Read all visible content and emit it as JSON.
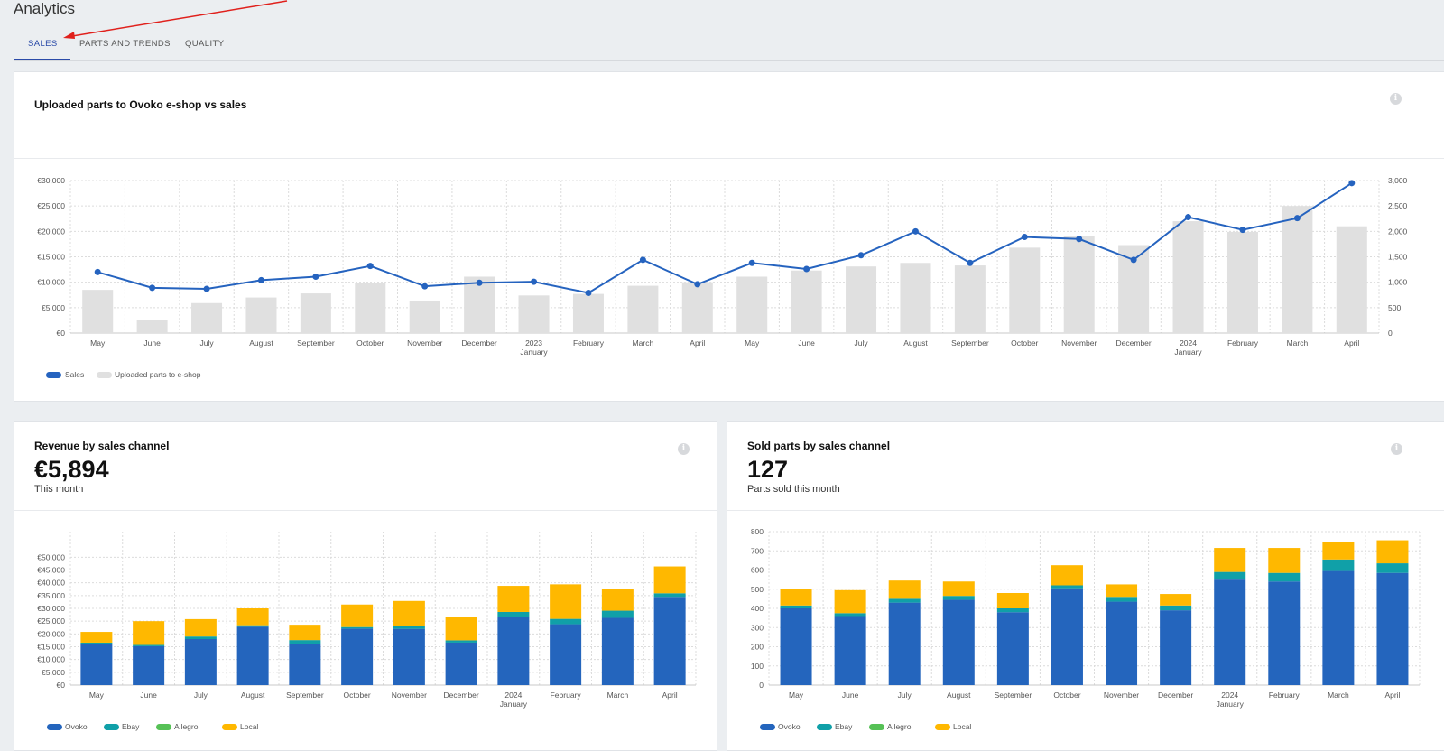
{
  "page": {
    "title": "Analytics"
  },
  "tabs": [
    {
      "label": "SALES",
      "active": true
    },
    {
      "label": "PARTS AND TRENDS",
      "active": false
    },
    {
      "label": "QUALITY",
      "active": false
    }
  ],
  "colors": {
    "sales_line": "#2563bf",
    "uploaded_bar": "#e0e0e0",
    "ovoko": "#2465bd",
    "ebay": "#10a0a8",
    "allegro": "#56c156",
    "local": "#ffb800",
    "accent": "#2a4aa8"
  },
  "cards": {
    "upload": {
      "title": "Uploaded parts to Ovoko e-shop vs sales"
    },
    "revenue": {
      "title": "Revenue by sales channel",
      "value": "€5,894",
      "sublabel": "This month"
    },
    "sold": {
      "title": "Sold parts by sales channel",
      "value": "127",
      "sublabel": "Parts sold this month"
    }
  },
  "chart_data": [
    {
      "type": "bar",
      "name": "uploaded-vs-sales",
      "categories": [
        "May",
        "June",
        "July",
        "August",
        "September",
        "October",
        "November",
        "December",
        "2023\nJanuary",
        "February",
        "March",
        "April",
        "May",
        "June",
        "July",
        "August",
        "September",
        "October",
        "November",
        "December",
        "2024\nJanuary",
        "February",
        "March",
        "April"
      ],
      "series": [
        {
          "name": "Sales",
          "type": "line",
          "axis": "left",
          "values": [
            12000,
            8900,
            8700,
            10400,
            11100,
            13200,
            9200,
            9900,
            10100,
            7900,
            14400,
            9600,
            13800,
            12600,
            15300,
            20000,
            13800,
            18900,
            18500,
            14400,
            22800,
            20300,
            22600,
            29500
          ]
        },
        {
          "name": "Uploaded parts to e-shop",
          "type": "bar",
          "axis": "right",
          "values": [
            850,
            250,
            590,
            700,
            780,
            990,
            640,
            1110,
            740,
            770,
            930,
            1000,
            1110,
            1230,
            1310,
            1380,
            1330,
            1680,
            1910,
            1730,
            2200,
            1990,
            2500,
            2100
          ]
        }
      ],
      "y_left": {
        "min": 0,
        "max": 30000,
        "ticks": [
          "€0",
          "€5,000",
          "€10,000",
          "€15,000",
          "€20,000",
          "€25,000",
          "€30,000"
        ]
      },
      "y_right": {
        "min": 0,
        "max": 3000,
        "ticks": [
          "0",
          "500",
          "1,000",
          "1,500",
          "2,000",
          "2,500",
          "3,000"
        ]
      },
      "legend": [
        "Sales",
        "Uploaded parts to e-shop"
      ],
      "legend_position": "bottom-left",
      "grid": true
    },
    {
      "type": "bar",
      "stacked": true,
      "name": "revenue-by-channel",
      "categories": [
        "May",
        "June",
        "July",
        "August",
        "September",
        "October",
        "November",
        "December",
        "2024\nJanuary",
        "February",
        "March",
        "April"
      ],
      "series": [
        {
          "name": "Ovoko",
          "values": [
            16000,
            15200,
            18000,
            22800,
            16100,
            22100,
            22000,
            16600,
            26700,
            23800,
            26300,
            34500
          ]
        },
        {
          "name": "Ebay",
          "values": [
            600,
            500,
            1000,
            600,
            1500,
            600,
            1100,
            900,
            1900,
            2100,
            2800,
            1400
          ]
        },
        {
          "name": "Allegro",
          "values": [
            0,
            0,
            0,
            0,
            0,
            0,
            0,
            0,
            0,
            0,
            0,
            0
          ]
        },
        {
          "name": "Local",
          "values": [
            4200,
            9300,
            6800,
            6600,
            6000,
            8800,
            9800,
            9100,
            10200,
            13500,
            8400,
            10500
          ]
        }
      ],
      "y": {
        "min": 0,
        "max": 60000,
        "ticks": [
          "€0",
          "€5,000",
          "€10,000",
          "€15,000",
          "€20,000",
          "€25,000",
          "€30,000",
          "€35,000",
          "€40,000",
          "€45,000",
          "€50,000"
        ]
      },
      "legend": [
        "Ovoko",
        "Ebay",
        "Allegro",
        "Local"
      ],
      "legend_position": "bottom-left",
      "grid": true
    },
    {
      "type": "bar",
      "stacked": true,
      "name": "sold-parts-by-channel",
      "categories": [
        "May",
        "June",
        "July",
        "August",
        "September",
        "October",
        "November",
        "December",
        "2024\nJanuary",
        "February",
        "March",
        "April"
      ],
      "series": [
        {
          "name": "Ovoko",
          "values": [
            400,
            360,
            430,
            445,
            380,
            505,
            435,
            390,
            550,
            540,
            595,
            585
          ]
        },
        {
          "name": "Ebay",
          "values": [
            15,
            15,
            20,
            20,
            20,
            15,
            25,
            25,
            40,
            45,
            60,
            50
          ]
        },
        {
          "name": "Allegro",
          "values": [
            0,
            0,
            0,
            0,
            0,
            0,
            0,
            0,
            0,
            0,
            0,
            0
          ]
        },
        {
          "name": "Local",
          "values": [
            85,
            120,
            95,
            75,
            80,
            105,
            65,
            60,
            125,
            130,
            90,
            120
          ]
        }
      ],
      "y": {
        "min": 0,
        "max": 800,
        "ticks": [
          "0",
          "100",
          "200",
          "300",
          "400",
          "500",
          "600",
          "700",
          "800"
        ]
      },
      "legend": [
        "Ovoko",
        "Ebay",
        "Allegro",
        "Local"
      ],
      "legend_position": "bottom-left",
      "grid": true
    }
  ]
}
